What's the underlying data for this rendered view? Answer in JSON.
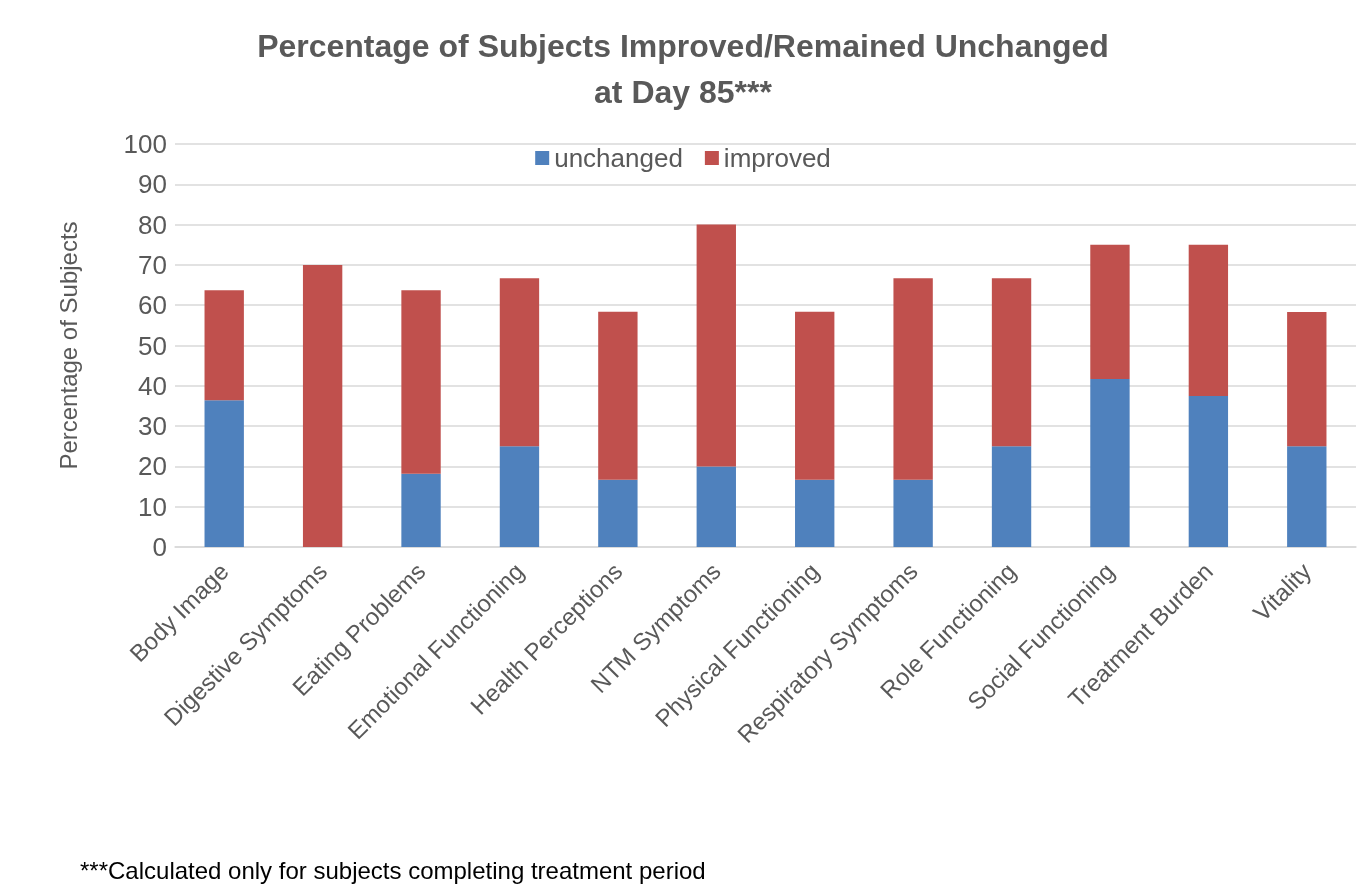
{
  "chart_data": {
    "type": "bar",
    "title": "Percentage of Subjects Improved/Remained Unchanged\nat Day 85***",
    "ylabel": "Percentage of Subjects",
    "categories": [
      "Body Image",
      "Digestive Symptoms",
      "Eating Problems",
      "Emotional Functioning",
      "Health Perceptions",
      "NTM Symptoms",
      "Physical Functioning",
      "Respiratory Symptoms",
      "Role Functioning",
      "Social Functioning",
      "Treatment Burden",
      "Vitality"
    ],
    "series": [
      {
        "name": "unchanged",
        "color": "#4f81bd",
        "values": [
          36.4,
          0,
          18.2,
          25,
          16.7,
          20,
          16.7,
          16.7,
          25,
          41.7,
          37.5,
          25
        ]
      },
      {
        "name": "improved",
        "color": "#c0504d",
        "values": [
          27.3,
          70,
          45.5,
          41.7,
          41.7,
          60,
          41.7,
          50,
          41.7,
          33.3,
          37.5,
          33.3
        ]
      }
    ],
    "stacked": true,
    "ylim": [
      0,
      100
    ],
    "yticks": [
      0,
      10,
      20,
      30,
      40,
      50,
      60,
      70,
      80,
      90,
      100
    ],
    "grid": "y",
    "legend": "top",
    "annotations": [
      "***Calculated only for subjects completing treatment period"
    ]
  }
}
